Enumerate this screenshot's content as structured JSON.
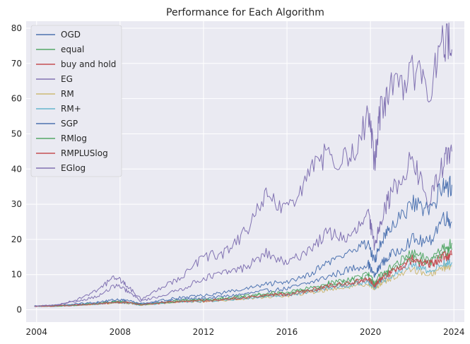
{
  "chart_data": {
    "type": "line",
    "title": "Performance for Each Algorithm",
    "xlabel": "",
    "ylabel": "",
    "xlim": [
      2003.5,
      2024.5
    ],
    "ylim": [
      -3.5,
      82
    ],
    "x_ticks": [
      2004,
      2008,
      2012,
      2016,
      2020,
      2024
    ],
    "y_ticks": [
      0,
      10,
      20,
      30,
      40,
      50,
      60,
      70,
      80
    ],
    "grid": true,
    "legend_position": "top-left",
    "x": [
      2003.9,
      2005.0,
      2006.0,
      2007.0,
      2007.8,
      2008.3,
      2009.0,
      2010.0,
      2011.0,
      2012.0,
      2013.0,
      2014.0,
      2015.0,
      2016.0,
      2017.0,
      2018.0,
      2019.0,
      2019.9,
      2020.2,
      2020.5,
      2021.0,
      2022.0,
      2022.8,
      2023.5,
      2023.9
    ],
    "series": [
      {
        "name": "OGD",
        "color": "#4c72b0",
        "values": [
          1.0,
          1.15,
          1.5,
          1.9,
          2.4,
          2.3,
          1.6,
          2.3,
          3.0,
          3.2,
          3.8,
          4.5,
          5.4,
          6.0,
          7.5,
          9.5,
          11.5,
          13.0,
          9.5,
          13.0,
          15.5,
          20.0,
          19.0,
          26.5,
          25.0
        ]
      },
      {
        "name": "equal",
        "color": "#55a868",
        "values": [
          1.0,
          1.1,
          1.4,
          1.8,
          2.3,
          2.2,
          1.5,
          2.1,
          2.7,
          2.8,
          3.3,
          3.9,
          4.6,
          5.0,
          6.0,
          7.5,
          8.8,
          10.0,
          7.8,
          10.0,
          12.0,
          16.0,
          14.0,
          18.0,
          19.0
        ]
      },
      {
        "name": "buy and hold",
        "color": "#c44e52",
        "values": [
          1.0,
          1.1,
          1.35,
          1.7,
          2.1,
          2.0,
          1.4,
          1.9,
          2.4,
          2.5,
          2.9,
          3.4,
          4.0,
          4.4,
          5.2,
          6.5,
          7.5,
          8.5,
          6.6,
          8.5,
          10.5,
          14.0,
          12.5,
          15.0,
          15.5
        ]
      },
      {
        "name": "EG",
        "color": "#8172b2",
        "values": [
          1.0,
          1.3,
          2.5,
          4.0,
          7.0,
          5.5,
          2.5,
          4.0,
          6.0,
          9.0,
          10.5,
          12.0,
          16.0,
          13.0,
          17.0,
          22.0,
          20.0,
          27.0,
          18.0,
          26.0,
          33.0,
          43.0,
          30.0,
          42.0,
          45.0
        ]
      },
      {
        "name": "RM",
        "color": "#ccb974",
        "values": [
          1.0,
          1.1,
          1.3,
          1.6,
          2.0,
          1.9,
          1.3,
          1.8,
          2.2,
          2.3,
          2.7,
          3.1,
          3.6,
          4.0,
          4.7,
          5.8,
          6.6,
          7.5,
          5.9,
          7.5,
          9.0,
          11.5,
          10.0,
          12.0,
          12.5
        ]
      },
      {
        "name": "RM+",
        "color": "#64b5cd",
        "values": [
          1.0,
          1.1,
          1.3,
          1.65,
          2.05,
          1.95,
          1.35,
          1.85,
          2.3,
          2.4,
          2.8,
          3.25,
          3.8,
          4.2,
          4.95,
          6.1,
          7.0,
          8.0,
          6.2,
          8.0,
          9.7,
          12.5,
          11.0,
          13.0,
          13.5
        ]
      },
      {
        "name": "SGP",
        "color": "#4c72b0",
        "values": [
          1.0,
          1.2,
          1.7,
          2.2,
          2.9,
          2.7,
          1.8,
          2.7,
          3.6,
          4.0,
          4.9,
          5.9,
          7.2,
          8.0,
          10.0,
          13.5,
          16.5,
          19.0,
          13.5,
          19.5,
          23.0,
          30.0,
          28.0,
          35.0,
          35.5
        ]
      },
      {
        "name": "RMlog",
        "color": "#55a868",
        "values": [
          1.0,
          1.1,
          1.4,
          1.75,
          2.2,
          2.1,
          1.45,
          2.0,
          2.55,
          2.65,
          3.1,
          3.6,
          4.3,
          4.7,
          5.6,
          7.0,
          8.1,
          9.3,
          7.2,
          9.3,
          11.2,
          14.8,
          13.0,
          16.5,
          17.0
        ]
      },
      {
        "name": "RMPLUSlog",
        "color": "#c44e52",
        "values": [
          1.0,
          1.1,
          1.35,
          1.7,
          2.15,
          2.05,
          1.42,
          1.95,
          2.45,
          2.55,
          2.95,
          3.45,
          4.1,
          4.5,
          5.35,
          6.7,
          7.7,
          8.8,
          6.8,
          8.8,
          10.7,
          14.3,
          12.8,
          15.2,
          15.6
        ]
      },
      {
        "name": "EGlog",
        "color": "#8172b2",
        "values": [
          1.0,
          1.4,
          3.0,
          6.0,
          9.5,
          7.0,
          3.0,
          6.5,
          9.5,
          15.0,
          16.0,
          22.0,
          32.0,
          28.0,
          38.0,
          45.0,
          42.0,
          55.0,
          42.0,
          58.0,
          62.0,
          68.0,
          63.0,
          77.0,
          74.0
        ]
      }
    ]
  }
}
